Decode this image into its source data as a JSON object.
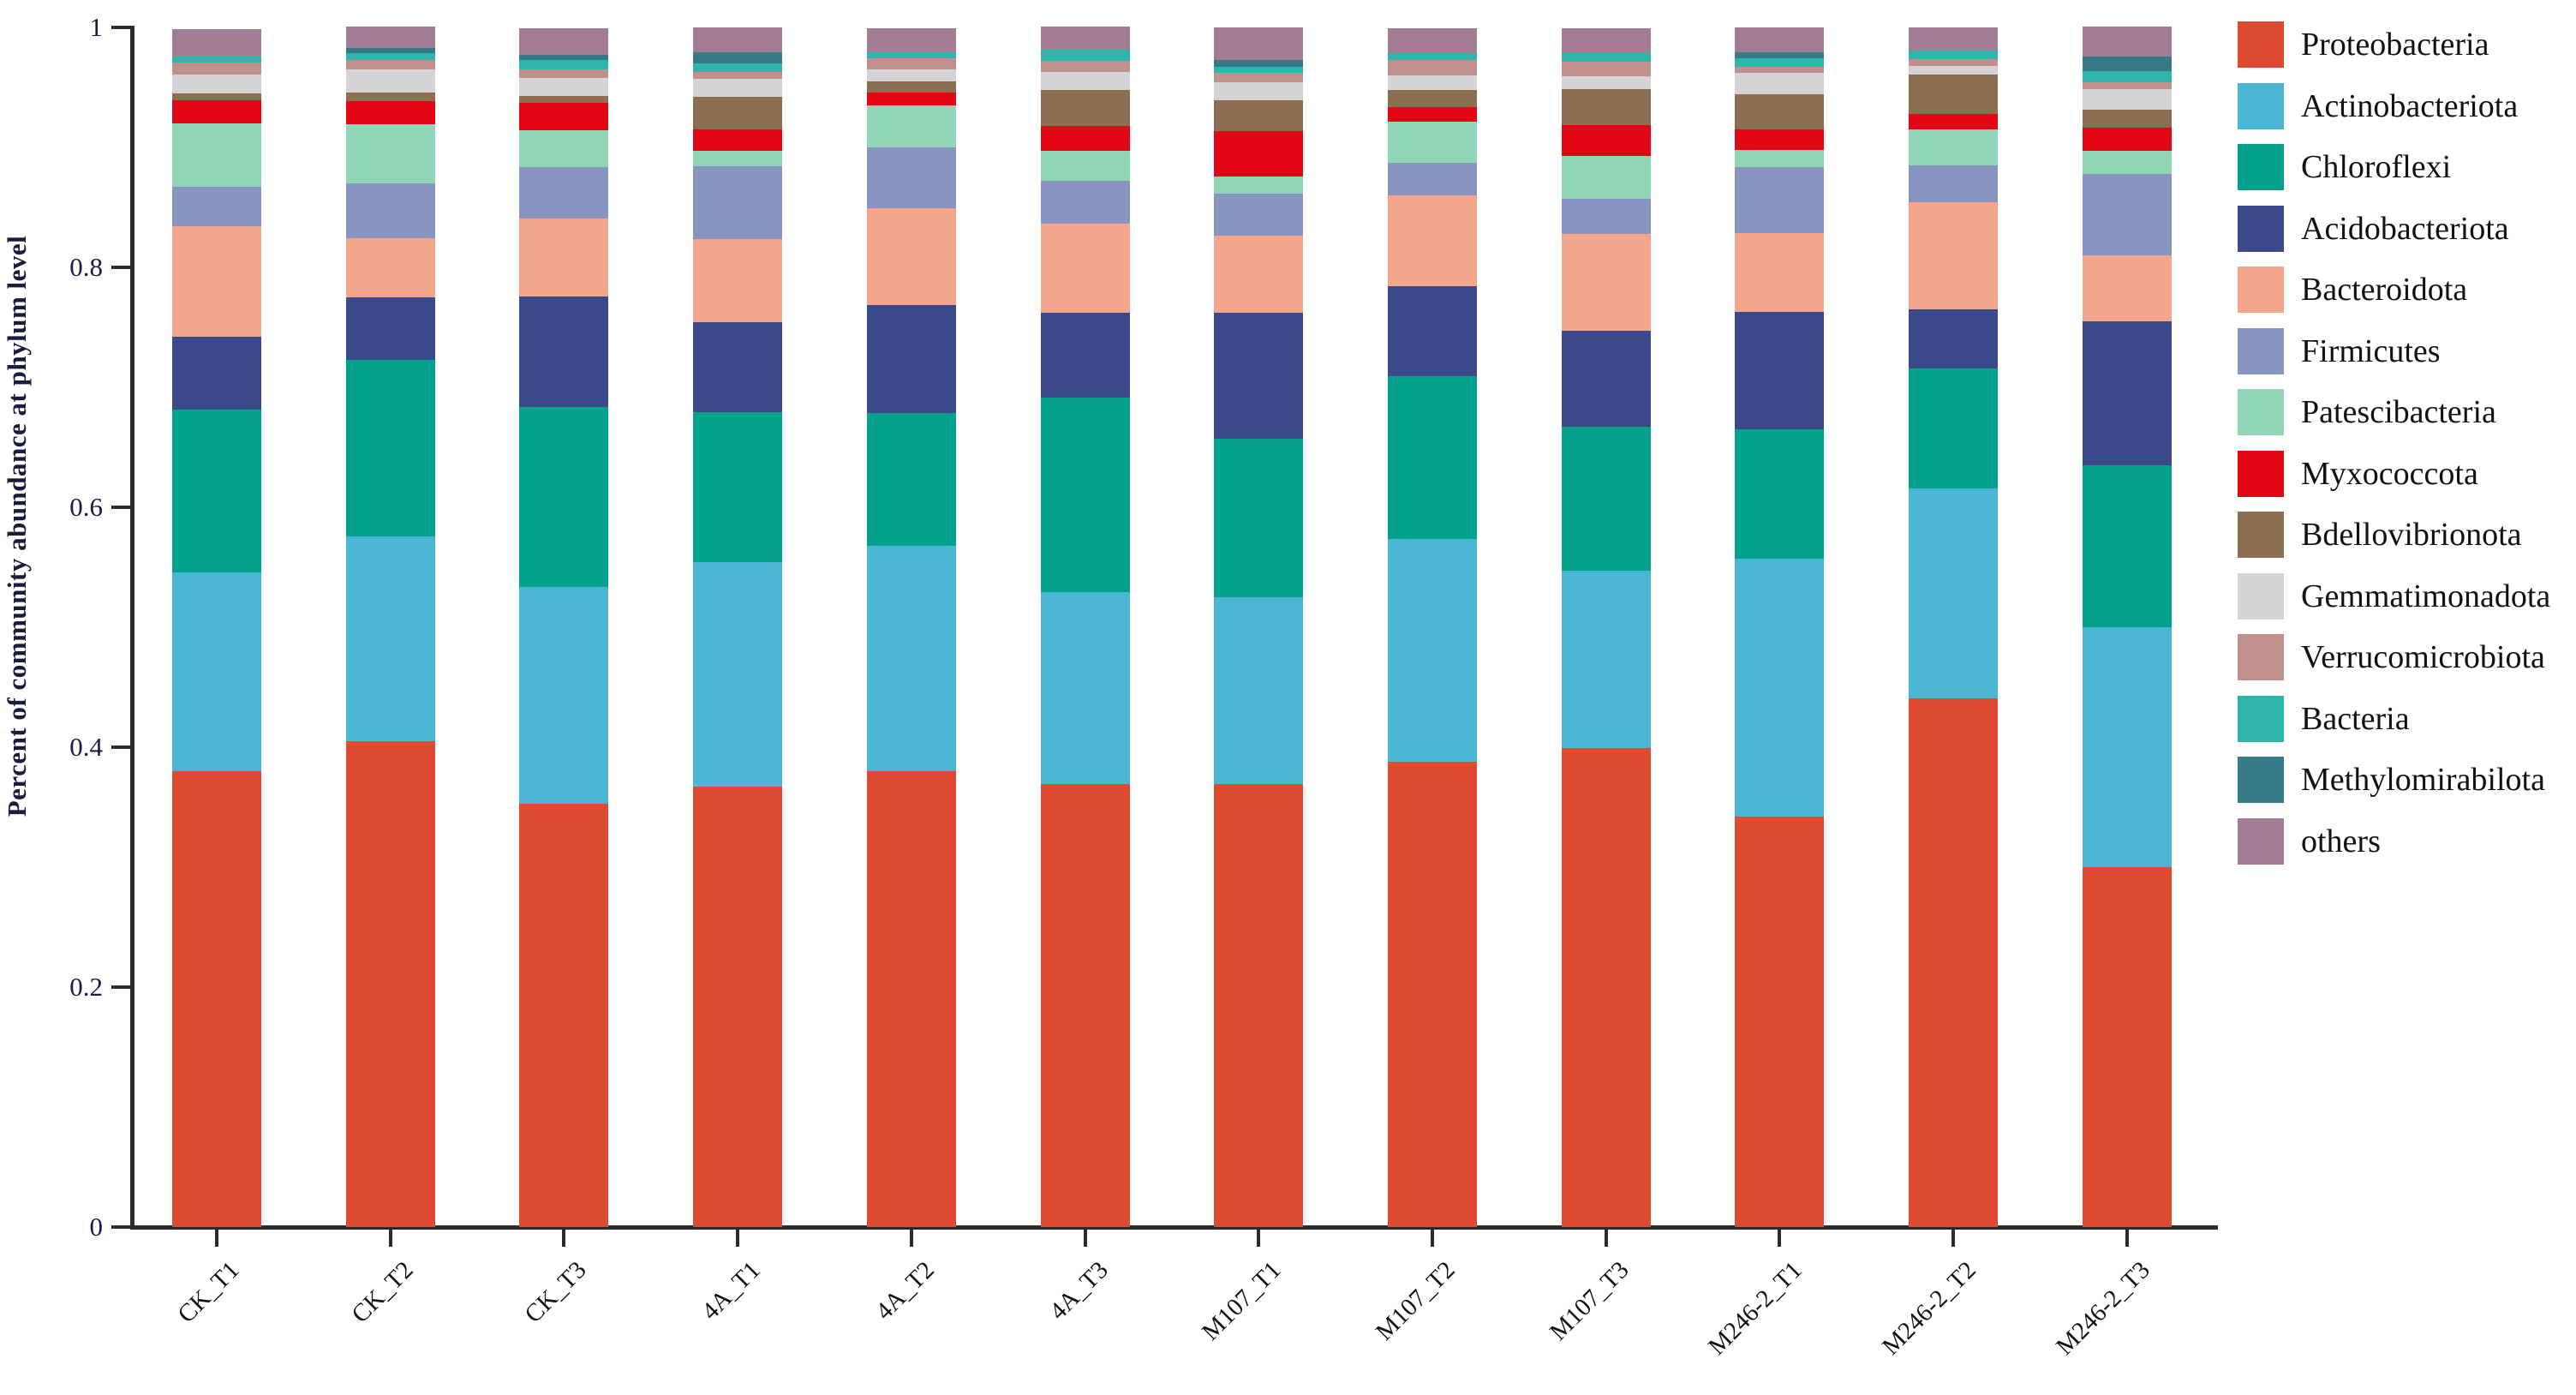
{
  "figure": {
    "background": "#ffffff",
    "y_axis_title": "Percent of community abundance at phylum level"
  },
  "chart_data": {
    "type": "bar",
    "subtype": "stacked-vertical",
    "title": "",
    "xlabel": "",
    "ylabel": "Percent of community abundance at phylum level",
    "ylim": [
      0,
      1
    ],
    "grid": false,
    "legend_position": "right",
    "yticks": [
      {
        "value": 1,
        "label": "1"
      },
      {
        "value": 0.8,
        "label": "0.8"
      },
      {
        "value": 0.6,
        "label": "0.6"
      },
      {
        "value": 0.4,
        "label": "0.4"
      },
      {
        "value": 0.2,
        "label": "0.2"
      },
      {
        "value": 0,
        "label": "0"
      }
    ],
    "categories": [
      "CK_T1",
      "CK_T2",
      "CK_T3",
      "4A_T1",
      "4A_T2",
      "4A_T3",
      "M107_T1",
      "M107_T2",
      "M107_T3",
      "M246-2_T1",
      "M246-2_T2",
      "M246-2_T3"
    ],
    "series": [
      {
        "name": "Proteobacteria",
        "color": "#DF4B30",
        "values": [
          0.38,
          0.405,
          0.353,
          0.367,
          0.38,
          0.369,
          0.369,
          0.388,
          0.399,
          0.342,
          0.441,
          0.3
        ]
      },
      {
        "name": "Actinobacteriota",
        "color": "#4BB6D3",
        "values": [
          0.166,
          0.171,
          0.181,
          0.187,
          0.188,
          0.16,
          0.156,
          0.186,
          0.148,
          0.215,
          0.175,
          0.2
        ]
      },
      {
        "name": "Chloroflexi",
        "color": "#04A28C",
        "values": [
          0.136,
          0.147,
          0.15,
          0.125,
          0.111,
          0.162,
          0.132,
          0.136,
          0.12,
          0.108,
          0.1,
          0.135
        ]
      },
      {
        "name": "Acidobacteriota",
        "color": "#39498C",
        "values": [
          0.061,
          0.052,
          0.092,
          0.075,
          0.09,
          0.071,
          0.105,
          0.075,
          0.08,
          0.098,
          0.049,
          0.12
        ]
      },
      {
        "name": "Bacteroidota",
        "color": "#F3A68C",
        "values": [
          0.092,
          0.049,
          0.065,
          0.069,
          0.081,
          0.074,
          0.064,
          0.076,
          0.081,
          0.066,
          0.089,
          0.055
        ]
      },
      {
        "name": "Firmicutes",
        "color": "#8795C0",
        "values": [
          0.033,
          0.046,
          0.043,
          0.061,
          0.051,
          0.036,
          0.035,
          0.027,
          0.029,
          0.055,
          0.031,
          0.068
        ]
      },
      {
        "name": "Patescibacteria",
        "color": "#90D5B6",
        "values": [
          0.053,
          0.049,
          0.031,
          0.013,
          0.035,
          0.025,
          0.014,
          0.034,
          0.036,
          0.014,
          0.03,
          0.019
        ]
      },
      {
        "name": "Myxococcota",
        "color": "#E30613",
        "values": [
          0.019,
          0.019,
          0.023,
          0.018,
          0.011,
          0.021,
          0.038,
          0.012,
          0.026,
          0.017,
          0.013,
          0.019
        ]
      },
      {
        "name": "Bdellovibrionota",
        "color": "#8C6E52",
        "values": [
          0.006,
          0.007,
          0.006,
          0.027,
          0.009,
          0.03,
          0.026,
          0.014,
          0.03,
          0.029,
          0.033,
          0.015
        ]
      },
      {
        "name": "Gemmatimonadota",
        "color": "#D4D4D6",
        "values": [
          0.016,
          0.019,
          0.015,
          0.015,
          0.01,
          0.015,
          0.015,
          0.012,
          0.011,
          0.018,
          0.007,
          0.017
        ]
      },
      {
        "name": "Verrucomicrobiota",
        "color": "#C0908C",
        "values": [
          0.01,
          0.008,
          0.007,
          0.006,
          0.009,
          0.009,
          0.008,
          0.013,
          0.012,
          0.005,
          0.006,
          0.006
        ]
      },
      {
        "name": "Bacteria",
        "color": "#2FB5AC",
        "values": [
          0.005,
          0.006,
          0.008,
          0.007,
          0.005,
          0.009,
          0.005,
          0.006,
          0.007,
          0.007,
          0.007,
          0.009
        ]
      },
      {
        "name": "Methylomirabilota",
        "color": "#347B87",
        "values": [
          0.0,
          0.004,
          0.004,
          0.009,
          0.0,
          0.0,
          0.006,
          0.0,
          0.0,
          0.005,
          0.0,
          0.012
        ]
      },
      {
        "name": "others",
        "color": "#A17C92",
        "values": [
          0.023,
          0.018,
          0.022,
          0.021,
          0.02,
          0.019,
          0.027,
          0.021,
          0.021,
          0.021,
          0.019,
          0.025
        ]
      }
    ]
  }
}
